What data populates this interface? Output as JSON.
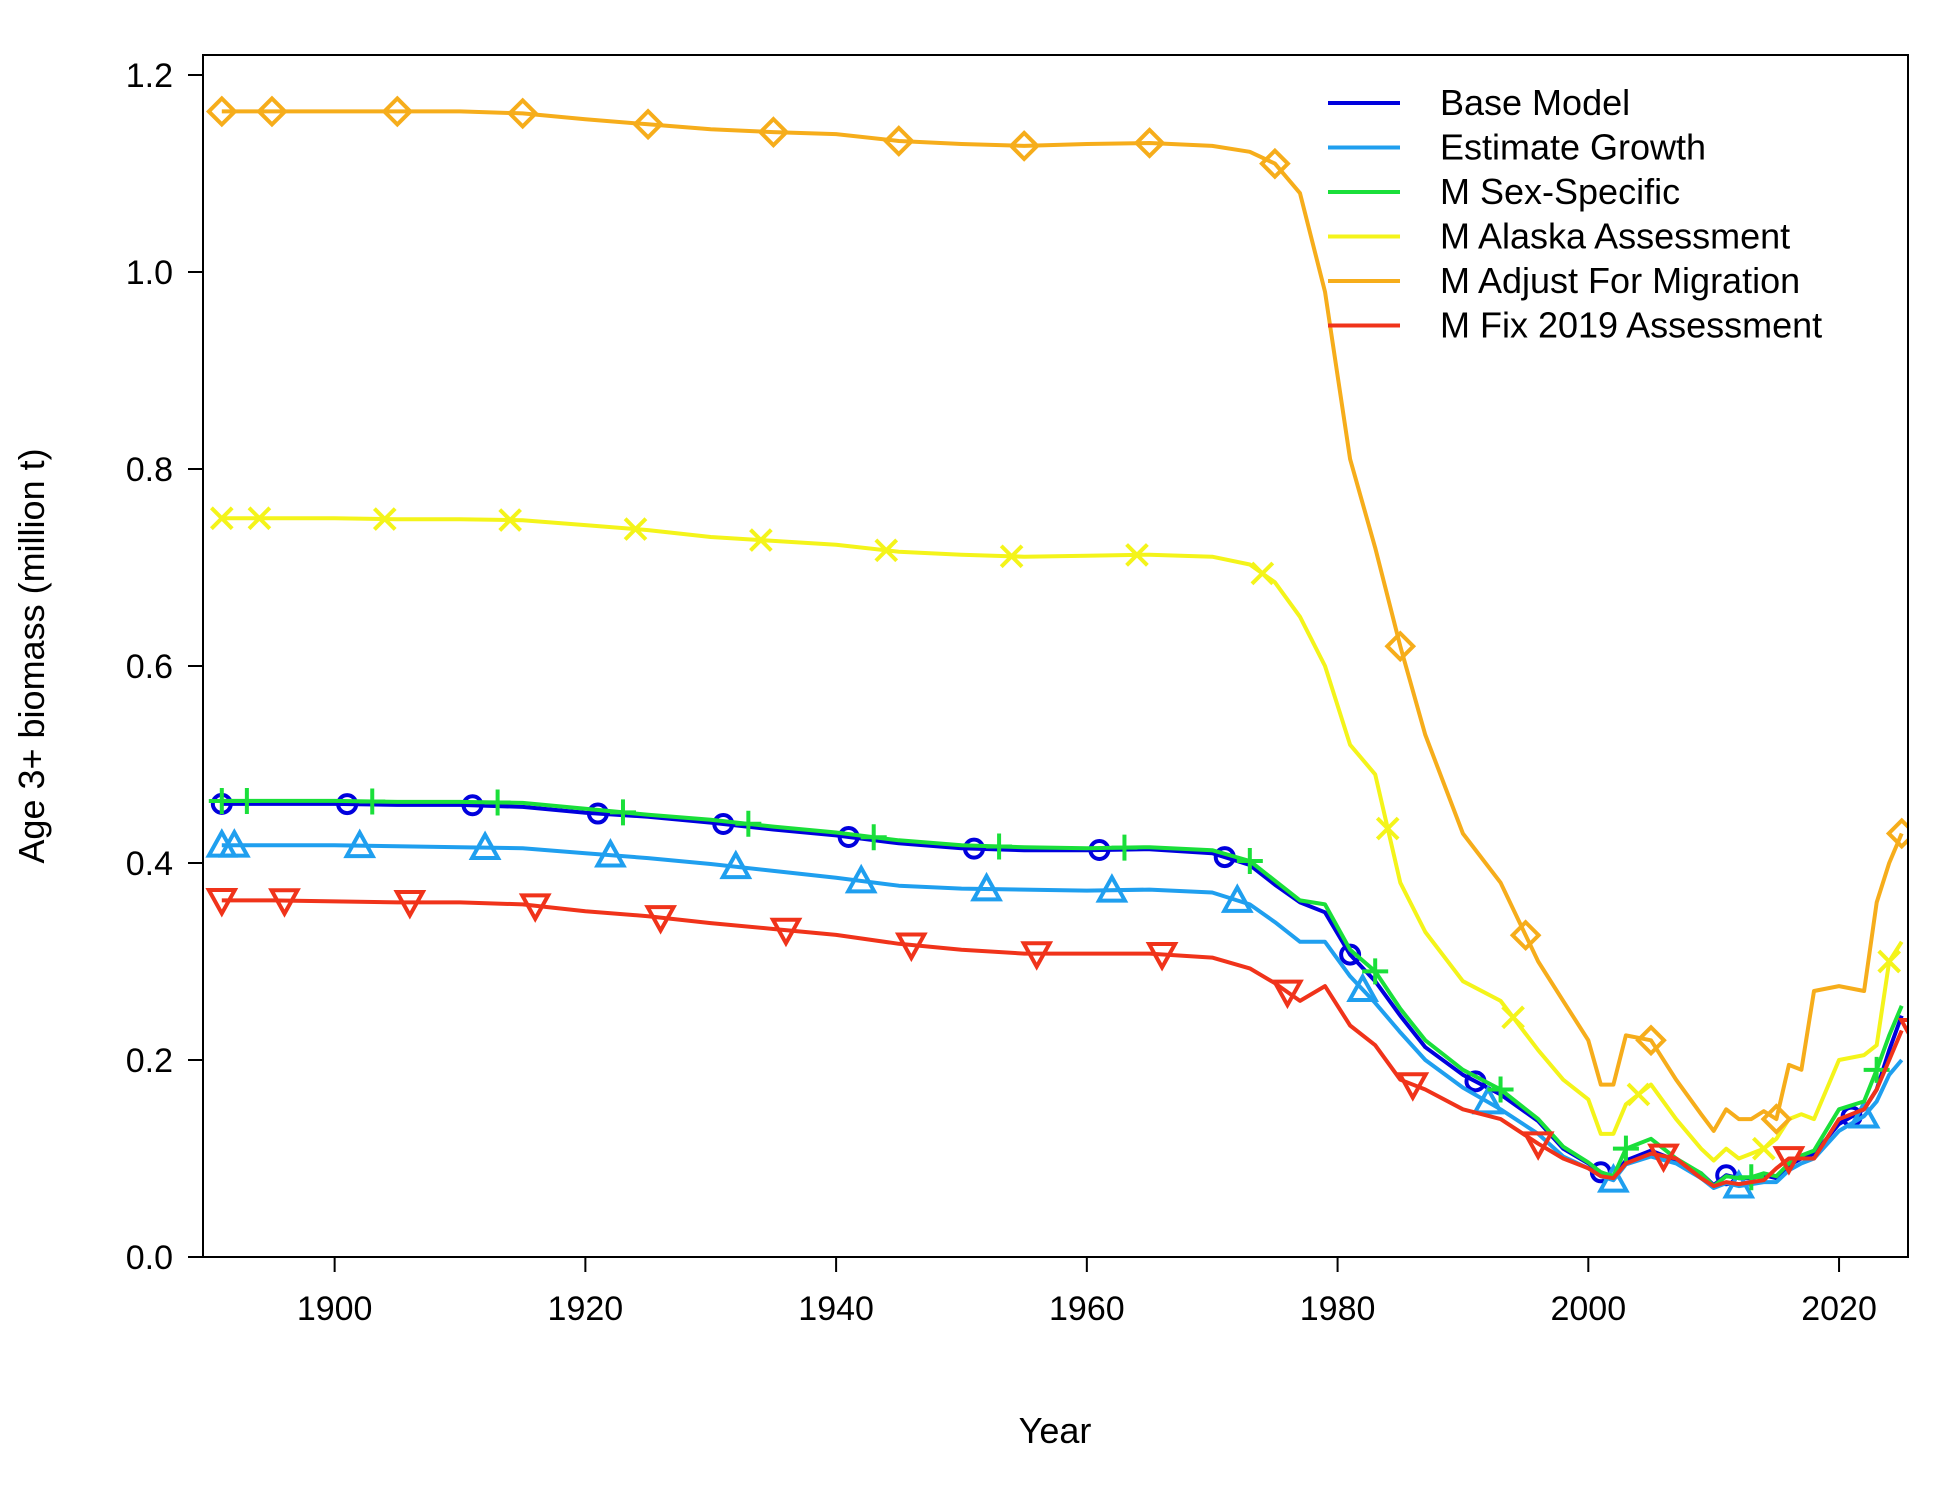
{
  "chart_data": {
    "type": "line",
    "title": "",
    "xlabel": "Year",
    "ylabel": "Age 3+ biomass (million t)",
    "xlim": [
      1889.5,
      2025.5
    ],
    "ylim": [
      0,
      1.22
    ],
    "x_ticks": [
      1900,
      1920,
      1940,
      1960,
      1980,
      2000,
      2020
    ],
    "y_ticks": [
      0.0,
      0.2,
      0.4,
      0.6,
      0.8,
      1.0,
      1.2
    ],
    "y_tick_labels": [
      "0.0",
      "0.2",
      "0.4",
      "0.6",
      "0.8",
      "1.0",
      "1.2"
    ],
    "legend_position": "top-right",
    "x": [
      1891,
      1895,
      1900,
      1905,
      1910,
      1915,
      1920,
      1925,
      1930,
      1935,
      1940,
      1945,
      1950,
      1955,
      1960,
      1965,
      1970,
      1973,
      1975,
      1977,
      1979,
      1981,
      1983,
      1985,
      1987,
      1990,
      1993,
      1996,
      1998,
      2000,
      2001,
      2002,
      2003,
      2005,
      2007,
      2009,
      2010,
      2011,
      2012,
      2013,
      2014,
      2015,
      2016,
      2017,
      2018,
      2020,
      2022,
      2023,
      2024,
      2025
    ],
    "series": [
      {
        "name": "Base Model",
        "color": "#0000dd",
        "marker": "circle",
        "values": [
          0.46,
          0.46,
          0.46,
          0.459,
          0.459,
          0.457,
          0.451,
          0.447,
          0.441,
          0.434,
          0.428,
          0.42,
          0.415,
          0.413,
          0.413,
          0.414,
          0.41,
          0.398,
          0.378,
          0.36,
          0.35,
          0.307,
          0.28,
          0.245,
          0.213,
          0.185,
          0.165,
          0.138,
          0.11,
          0.095,
          0.086,
          0.081,
          0.098,
          0.108,
          0.098,
          0.085,
          0.073,
          0.083,
          0.08,
          0.08,
          0.083,
          0.08,
          0.093,
          0.1,
          0.105,
          0.135,
          0.15,
          0.17,
          0.21,
          0.245
        ],
        "marker_x": [
          1891,
          1901,
          1911,
          1921,
          1931,
          1941,
          1951,
          1961,
          1971,
          1981,
          1991,
          2001,
          2011,
          2021
        ]
      },
      {
        "name": "Estimate Growth",
        "color": "#1f9fef",
        "marker": "triangle",
        "values": [
          0.418,
          0.418,
          0.418,
          0.417,
          0.416,
          0.415,
          0.41,
          0.405,
          0.399,
          0.392,
          0.385,
          0.377,
          0.374,
          0.373,
          0.372,
          0.373,
          0.37,
          0.358,
          0.34,
          0.32,
          0.32,
          0.285,
          0.258,
          0.228,
          0.2,
          0.172,
          0.15,
          0.125,
          0.102,
          0.09,
          0.082,
          0.078,
          0.094,
          0.102,
          0.095,
          0.08,
          0.07,
          0.075,
          0.072,
          0.074,
          0.076,
          0.076,
          0.088,
          0.095,
          0.1,
          0.128,
          0.143,
          0.158,
          0.185,
          0.2
        ],
        "marker_x": [
          1891,
          1892,
          1902,
          1912,
          1922,
          1932,
          1942,
          1952,
          1962,
          1972,
          1982,
          1992,
          2002,
          2012,
          2022
        ]
      },
      {
        "name": "M Sex-Specific",
        "color": "#1adf3a",
        "marker": "plus",
        "values": [
          0.463,
          0.463,
          0.463,
          0.462,
          0.462,
          0.461,
          0.455,
          0.449,
          0.444,
          0.437,
          0.431,
          0.423,
          0.418,
          0.416,
          0.415,
          0.416,
          0.413,
          0.402,
          0.382,
          0.362,
          0.358,
          0.312,
          0.29,
          0.252,
          0.22,
          0.19,
          0.17,
          0.14,
          0.112,
          0.096,
          0.086,
          0.082,
          0.11,
          0.12,
          0.1,
          0.085,
          0.072,
          0.082,
          0.08,
          0.081,
          0.085,
          0.082,
          0.095,
          0.103,
          0.108,
          0.15,
          0.158,
          0.19,
          0.225,
          0.255
        ],
        "marker_x": [
          1891,
          1893,
          1903,
          1913,
          1923,
          1933,
          1943,
          1953,
          1963,
          1973,
          1983,
          1993,
          2003,
          2013,
          2023
        ]
      },
      {
        "name": "M Alaska Assessment",
        "color": "#f4f41a",
        "marker": "cross",
        "values": [
          0.75,
          0.75,
          0.75,
          0.749,
          0.749,
          0.748,
          0.743,
          0.738,
          0.731,
          0.727,
          0.723,
          0.716,
          0.713,
          0.711,
          0.712,
          0.713,
          0.711,
          0.703,
          0.685,
          0.65,
          0.6,
          0.52,
          0.49,
          0.38,
          0.33,
          0.28,
          0.26,
          0.21,
          0.18,
          0.16,
          0.125,
          0.125,
          0.155,
          0.175,
          0.14,
          0.11,
          0.098,
          0.11,
          0.1,
          0.105,
          0.11,
          0.12,
          0.14,
          0.145,
          0.14,
          0.2,
          0.205,
          0.215,
          0.3,
          0.32
        ],
        "marker_x": [
          1891,
          1894,
          1904,
          1914,
          1924,
          1934,
          1944,
          1954,
          1964,
          1974,
          1984,
          1994,
          2004,
          2014,
          2024
        ]
      },
      {
        "name": "M Adjust For Migration",
        "color": "#f6ad1b",
        "marker": "diamond",
        "values": [
          1.163,
          1.163,
          1.163,
          1.163,
          1.163,
          1.161,
          1.155,
          1.15,
          1.145,
          1.142,
          1.14,
          1.133,
          1.13,
          1.128,
          1.13,
          1.131,
          1.128,
          1.122,
          1.11,
          1.08,
          0.98,
          0.81,
          0.72,
          0.62,
          0.53,
          0.43,
          0.38,
          0.3,
          0.26,
          0.22,
          0.175,
          0.175,
          0.225,
          0.22,
          0.18,
          0.145,
          0.128,
          0.15,
          0.14,
          0.14,
          0.148,
          0.14,
          0.195,
          0.19,
          0.27,
          0.275,
          0.27,
          0.36,
          0.4,
          0.43
        ],
        "marker_x": [
          1891,
          1895,
          1905,
          1915,
          1925,
          1935,
          1945,
          1955,
          1965,
          1975,
          1985,
          1995,
          2005,
          2015,
          2025
        ]
      },
      {
        "name": "M Fix 2019 Assessment",
        "color": "#f0331a",
        "marker": "triangle-down",
        "values": [
          0.362,
          0.362,
          0.361,
          0.36,
          0.36,
          0.358,
          0.351,
          0.346,
          0.339,
          0.333,
          0.327,
          0.318,
          0.312,
          0.308,
          0.308,
          0.308,
          0.304,
          0.293,
          0.278,
          0.26,
          0.275,
          0.235,
          0.215,
          0.18,
          0.17,
          0.15,
          0.14,
          0.115,
          0.1,
          0.09,
          0.082,
          0.08,
          0.095,
          0.105,
          0.1,
          0.08,
          0.072,
          0.076,
          0.074,
          0.076,
          0.078,
          0.09,
          0.1,
          0.1,
          0.1,
          0.14,
          0.15,
          0.17,
          0.2,
          0.23
        ],
        "marker_x": [
          1891,
          1896,
          1906,
          1916,
          1926,
          1936,
          1946,
          1956,
          1966,
          1976,
          1986,
          1996,
          2006,
          2016,
          2026
        ]
      }
    ]
  },
  "colors": {
    "axis": "#000000",
    "background": "#ffffff"
  }
}
